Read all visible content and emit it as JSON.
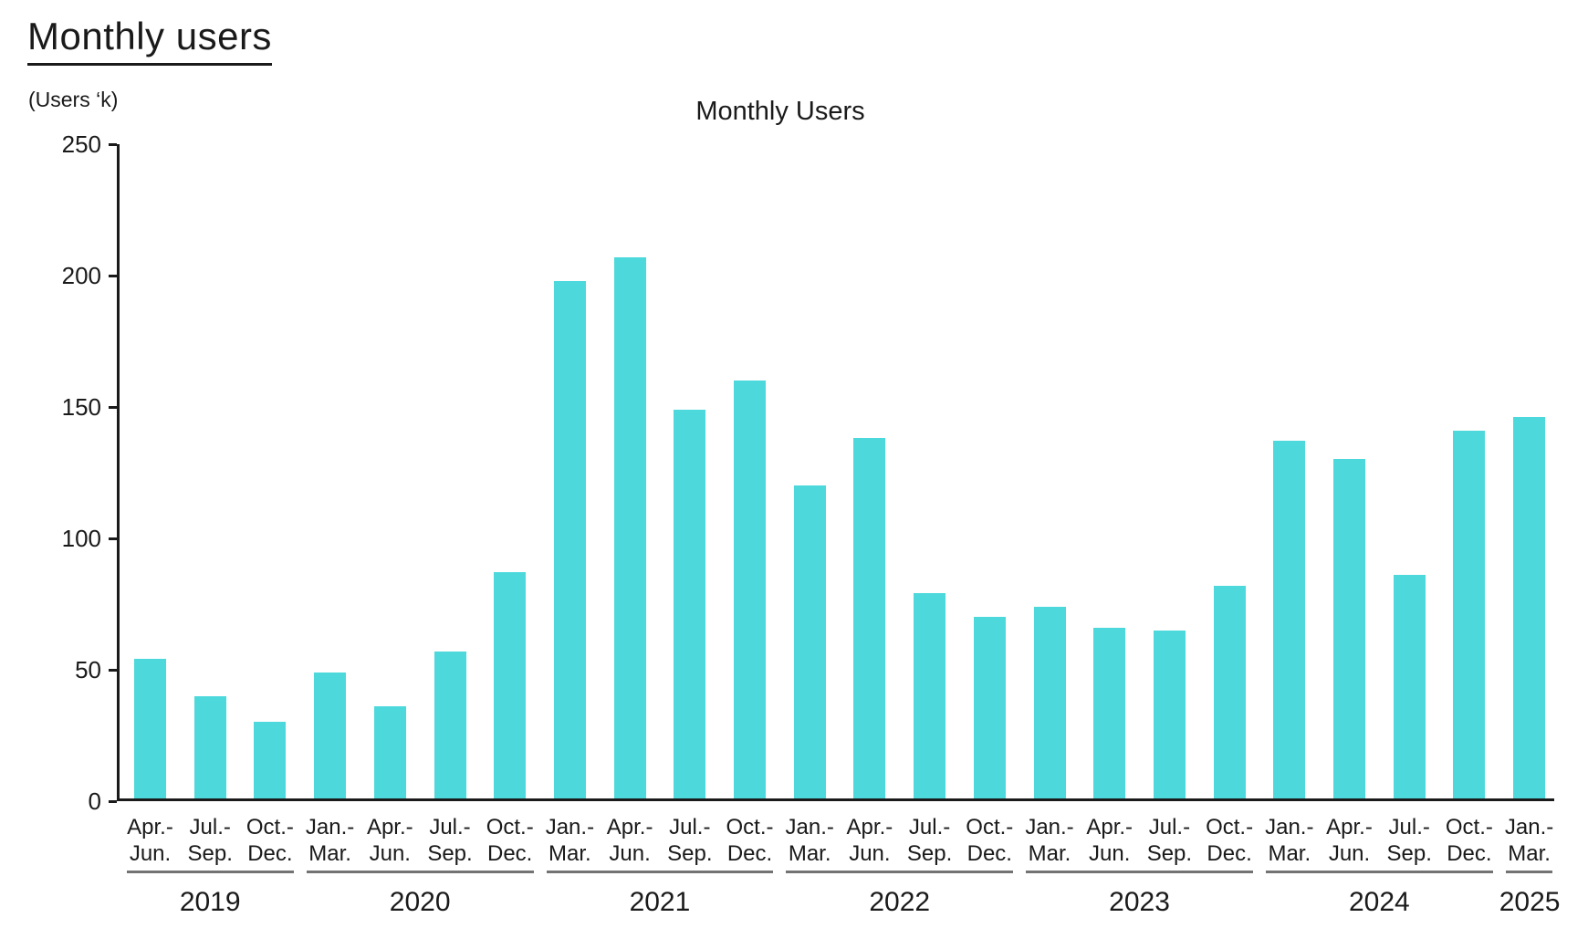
{
  "page": {
    "title": "Monthly users",
    "unit_label": "(Users ‘k)"
  },
  "chart_data": {
    "type": "bar",
    "title": "Monthly Users",
    "xlabel": "",
    "ylabel": "(Users ‘k)",
    "ylim": [
      0,
      250
    ],
    "yticks": [
      0,
      50,
      100,
      150,
      200,
      250
    ],
    "grid": false,
    "legend": "none",
    "bar_color": "#4DD9DC",
    "axis_color": "#1a1a1a",
    "group_underline_color": "#737373",
    "categories": [
      "2019 Apr.-Jun.",
      "2019 Jul.-Sep.",
      "2019 Oct.-Dec.",
      "2020 Jan.-Mar.",
      "2020 Apr.-Jun.",
      "2020 Jul.-Sep.",
      "2020 Oct.-Dec.",
      "2021 Jan.-Mar.",
      "2021 Apr.-Jun.",
      "2021 Jul.-Sep.",
      "2021 Oct.-Dec.",
      "2022 Jan.-Mar.",
      "2022 Apr.-Jun.",
      "2022 Jul.-Sep.",
      "2022 Oct.-Dec.",
      "2023 Jan.-Mar.",
      "2023 Apr.-Jun.",
      "2023 Jul.-Sep.",
      "2023 Oct.-Dec.",
      "2024 Jan.-Mar.",
      "2024 Apr.-Jun.",
      "2024 Jul.-Sep.",
      "2024 Oct.-Dec.",
      "2025 Jan.-Mar."
    ],
    "values": [
      53,
      39,
      29,
      48,
      35,
      56,
      86,
      197,
      206,
      148,
      159,
      119,
      137,
      78,
      69,
      73,
      65,
      64,
      81,
      136,
      129,
      85,
      140,
      145
    ],
    "groups": [
      {
        "year": "2019",
        "quarters": [
          {
            "label": "Apr.-\nJun.",
            "value": 53
          },
          {
            "label": "Jul.-\nSep.",
            "value": 39
          },
          {
            "label": "Oct.-\nDec.",
            "value": 29
          }
        ]
      },
      {
        "year": "2020",
        "quarters": [
          {
            "label": "Jan.-\nMar.",
            "value": 48
          },
          {
            "label": "Apr.-\nJun.",
            "value": 35
          },
          {
            "label": "Jul.-\nSep.",
            "value": 56
          },
          {
            "label": "Oct.-\nDec.",
            "value": 86
          }
        ]
      },
      {
        "year": "2021",
        "quarters": [
          {
            "label": "Jan.-\nMar.",
            "value": 197
          },
          {
            "label": "Apr.-\nJun.",
            "value": 206
          },
          {
            "label": "Jul.-\nSep.",
            "value": 148
          },
          {
            "label": "Oct.-\nDec.",
            "value": 159
          }
        ]
      },
      {
        "year": "2022",
        "quarters": [
          {
            "label": "Jan.-\nMar.",
            "value": 119
          },
          {
            "label": "Apr.-\nJun.",
            "value": 137
          },
          {
            "label": "Jul.-\nSep.",
            "value": 78
          },
          {
            "label": "Oct.-\nDec.",
            "value": 69
          }
        ]
      },
      {
        "year": "2023",
        "quarters": [
          {
            "label": "Jan.-\nMar.",
            "value": 73
          },
          {
            "label": "Apr.-\nJun.",
            "value": 65
          },
          {
            "label": "Jul.-\nSep.",
            "value": 64
          },
          {
            "label": "Oct.-\nDec.",
            "value": 81
          }
        ]
      },
      {
        "year": "2024",
        "quarters": [
          {
            "label": "Jan.-\nMar.",
            "value": 136
          },
          {
            "label": "Apr.-\nJun.",
            "value": 129
          },
          {
            "label": "Jul.-\nSep.",
            "value": 85
          },
          {
            "label": "Oct.-\nDec.",
            "value": 140
          }
        ]
      },
      {
        "year": "2025",
        "quarters": [
          {
            "label": "Jan.-\nMar.",
            "value": 145
          }
        ]
      }
    ]
  }
}
